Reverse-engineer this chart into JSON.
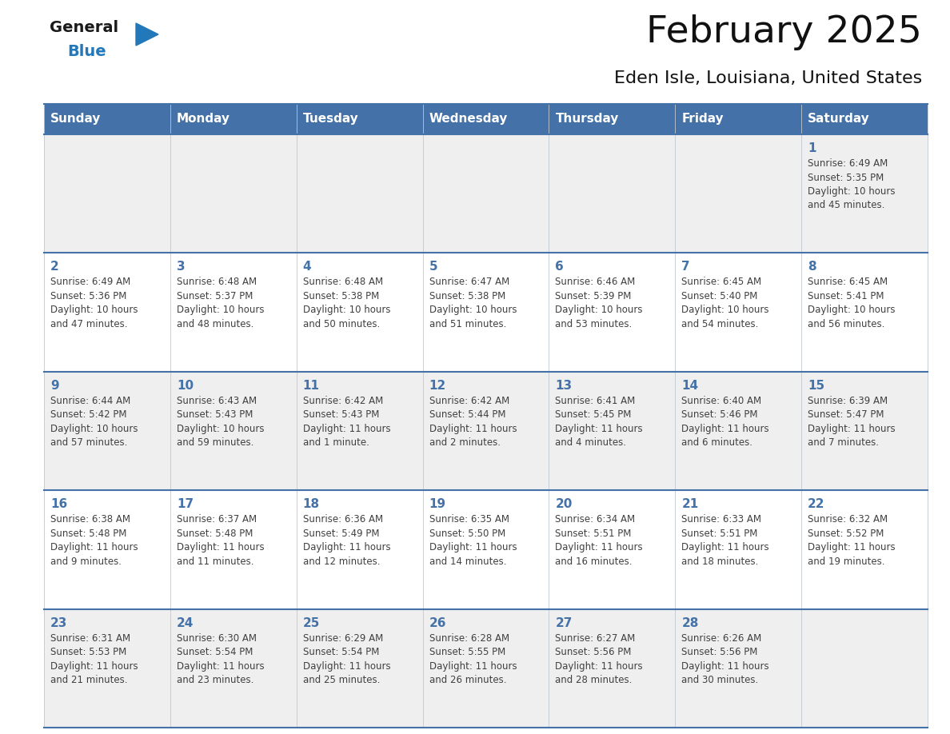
{
  "title": "February 2025",
  "subtitle": "Eden Isle, Louisiana, United States",
  "header_bg_color": "#4472a8",
  "header_text_color": "#ffffff",
  "day_headers": [
    "Sunday",
    "Monday",
    "Tuesday",
    "Wednesday",
    "Thursday",
    "Friday",
    "Saturday"
  ],
  "row_bg_colors": [
    "#efefef",
    "#ffffff",
    "#efefef",
    "#ffffff",
    "#efefef"
  ],
  "cell_border_color": "#4472a8",
  "cell_border_thin": "#b8c8d8",
  "day_num_color": "#4472a8",
  "info_text_color": "#404040",
  "logo_black_color": "#1a1a1a",
  "logo_blue_color": "#2278b8",
  "weeks": [
    [
      {
        "day": null,
        "sunrise": null,
        "sunset": null,
        "daylight_h": null,
        "daylight_m": null
      },
      {
        "day": null,
        "sunrise": null,
        "sunset": null,
        "daylight_h": null,
        "daylight_m": null
      },
      {
        "day": null,
        "sunrise": null,
        "sunset": null,
        "daylight_h": null,
        "daylight_m": null
      },
      {
        "day": null,
        "sunrise": null,
        "sunset": null,
        "daylight_h": null,
        "daylight_m": null
      },
      {
        "day": null,
        "sunrise": null,
        "sunset": null,
        "daylight_h": null,
        "daylight_m": null
      },
      {
        "day": null,
        "sunrise": null,
        "sunset": null,
        "daylight_h": null,
        "daylight_m": null
      },
      {
        "day": 1,
        "sunrise": "6:49 AM",
        "sunset": "5:35 PM",
        "daylight_h": "10 hours",
        "daylight_m": "and 45 minutes."
      }
    ],
    [
      {
        "day": 2,
        "sunrise": "6:49 AM",
        "sunset": "5:36 PM",
        "daylight_h": "10 hours",
        "daylight_m": "and 47 minutes."
      },
      {
        "day": 3,
        "sunrise": "6:48 AM",
        "sunset": "5:37 PM",
        "daylight_h": "10 hours",
        "daylight_m": "and 48 minutes."
      },
      {
        "day": 4,
        "sunrise": "6:48 AM",
        "sunset": "5:38 PM",
        "daylight_h": "10 hours",
        "daylight_m": "and 50 minutes."
      },
      {
        "day": 5,
        "sunrise": "6:47 AM",
        "sunset": "5:38 PM",
        "daylight_h": "10 hours",
        "daylight_m": "and 51 minutes."
      },
      {
        "day": 6,
        "sunrise": "6:46 AM",
        "sunset": "5:39 PM",
        "daylight_h": "10 hours",
        "daylight_m": "and 53 minutes."
      },
      {
        "day": 7,
        "sunrise": "6:45 AM",
        "sunset": "5:40 PM",
        "daylight_h": "10 hours",
        "daylight_m": "and 54 minutes."
      },
      {
        "day": 8,
        "sunrise": "6:45 AM",
        "sunset": "5:41 PM",
        "daylight_h": "10 hours",
        "daylight_m": "and 56 minutes."
      }
    ],
    [
      {
        "day": 9,
        "sunrise": "6:44 AM",
        "sunset": "5:42 PM",
        "daylight_h": "10 hours",
        "daylight_m": "and 57 minutes."
      },
      {
        "day": 10,
        "sunrise": "6:43 AM",
        "sunset": "5:43 PM",
        "daylight_h": "10 hours",
        "daylight_m": "and 59 minutes."
      },
      {
        "day": 11,
        "sunrise": "6:42 AM",
        "sunset": "5:43 PM",
        "daylight_h": "11 hours",
        "daylight_m": "and 1 minute."
      },
      {
        "day": 12,
        "sunrise": "6:42 AM",
        "sunset": "5:44 PM",
        "daylight_h": "11 hours",
        "daylight_m": "and 2 minutes."
      },
      {
        "day": 13,
        "sunrise": "6:41 AM",
        "sunset": "5:45 PM",
        "daylight_h": "11 hours",
        "daylight_m": "and 4 minutes."
      },
      {
        "day": 14,
        "sunrise": "6:40 AM",
        "sunset": "5:46 PM",
        "daylight_h": "11 hours",
        "daylight_m": "and 6 minutes."
      },
      {
        "day": 15,
        "sunrise": "6:39 AM",
        "sunset": "5:47 PM",
        "daylight_h": "11 hours",
        "daylight_m": "and 7 minutes."
      }
    ],
    [
      {
        "day": 16,
        "sunrise": "6:38 AM",
        "sunset": "5:48 PM",
        "daylight_h": "11 hours",
        "daylight_m": "and 9 minutes."
      },
      {
        "day": 17,
        "sunrise": "6:37 AM",
        "sunset": "5:48 PM",
        "daylight_h": "11 hours",
        "daylight_m": "and 11 minutes."
      },
      {
        "day": 18,
        "sunrise": "6:36 AM",
        "sunset": "5:49 PM",
        "daylight_h": "11 hours",
        "daylight_m": "and 12 minutes."
      },
      {
        "day": 19,
        "sunrise": "6:35 AM",
        "sunset": "5:50 PM",
        "daylight_h": "11 hours",
        "daylight_m": "and 14 minutes."
      },
      {
        "day": 20,
        "sunrise": "6:34 AM",
        "sunset": "5:51 PM",
        "daylight_h": "11 hours",
        "daylight_m": "and 16 minutes."
      },
      {
        "day": 21,
        "sunrise": "6:33 AM",
        "sunset": "5:51 PM",
        "daylight_h": "11 hours",
        "daylight_m": "and 18 minutes."
      },
      {
        "day": 22,
        "sunrise": "6:32 AM",
        "sunset": "5:52 PM",
        "daylight_h": "11 hours",
        "daylight_m": "and 19 minutes."
      }
    ],
    [
      {
        "day": 23,
        "sunrise": "6:31 AM",
        "sunset": "5:53 PM",
        "daylight_h": "11 hours",
        "daylight_m": "and 21 minutes."
      },
      {
        "day": 24,
        "sunrise": "6:30 AM",
        "sunset": "5:54 PM",
        "daylight_h": "11 hours",
        "daylight_m": "and 23 minutes."
      },
      {
        "day": 25,
        "sunrise": "6:29 AM",
        "sunset": "5:54 PM",
        "daylight_h": "11 hours",
        "daylight_m": "and 25 minutes."
      },
      {
        "day": 26,
        "sunrise": "6:28 AM",
        "sunset": "5:55 PM",
        "daylight_h": "11 hours",
        "daylight_m": "and 26 minutes."
      },
      {
        "day": 27,
        "sunrise": "6:27 AM",
        "sunset": "5:56 PM",
        "daylight_h": "11 hours",
        "daylight_m": "and 28 minutes."
      },
      {
        "day": 28,
        "sunrise": "6:26 AM",
        "sunset": "5:56 PM",
        "daylight_h": "11 hours",
        "daylight_m": "and 30 minutes."
      },
      {
        "day": null,
        "sunrise": null,
        "sunset": null,
        "daylight_h": null,
        "daylight_m": null
      }
    ]
  ]
}
